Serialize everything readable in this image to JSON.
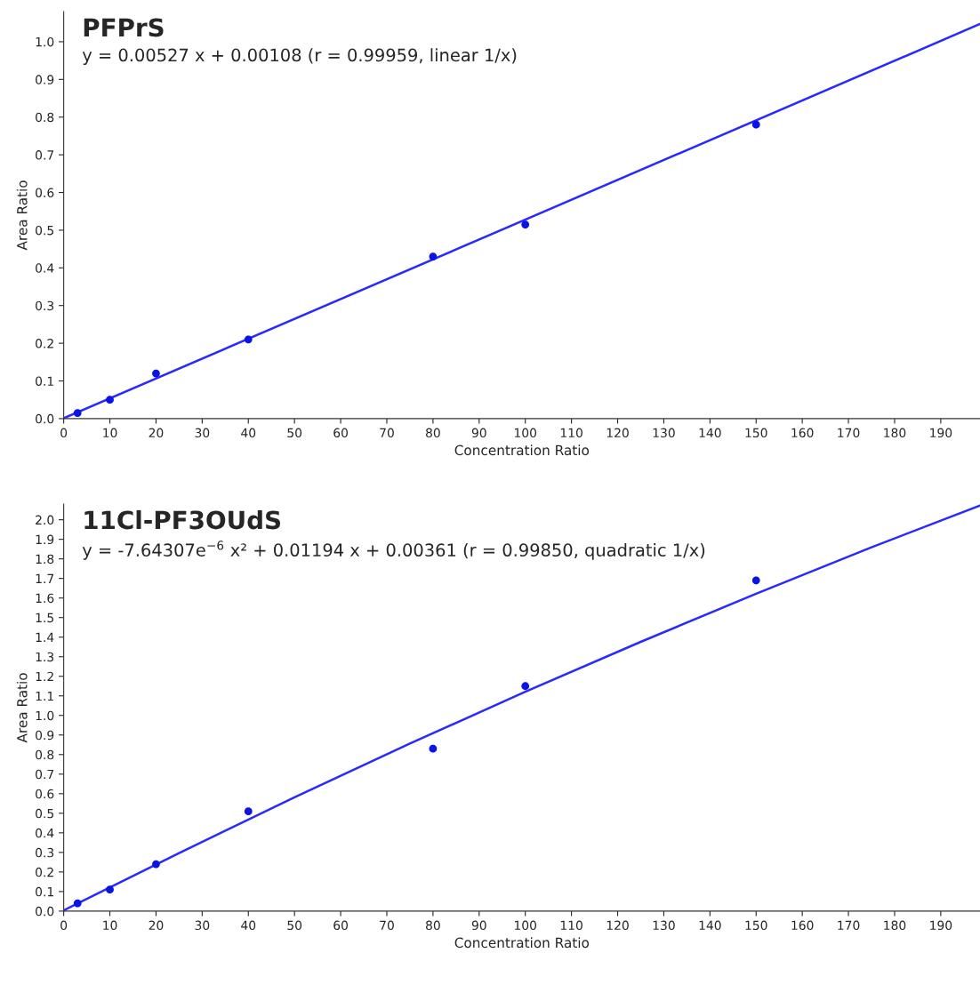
{
  "chart_data": [
    {
      "type": "scatter",
      "title": "PFPrS",
      "subtitle": "y = 0.00527 x + 0.00108 (r = 0.99959, linear 1/x)",
      "xlabel": "Concentration Ratio",
      "ylabel": "Area Ratio",
      "xlim": [
        0,
        198.5
      ],
      "ylim": [
        0,
        1.08
      ],
      "xticks": [
        0,
        10,
        20,
        30,
        40,
        50,
        60,
        70,
        80,
        90,
        100,
        110,
        120,
        130,
        140,
        150,
        160,
        170,
        180,
        190
      ],
      "yticks": [
        {
          "value": 0,
          "label": "0.0"
        },
        0.1,
        0.2,
        0.3,
        0.4,
        0.5,
        0.6,
        0.7,
        0.8,
        0.9,
        {
          "value": 1,
          "label": "1.0"
        }
      ],
      "grid": false,
      "series": [
        {
          "marker": "circle",
          "color": "#0a14e6",
          "x": [
            3,
            10,
            20,
            40,
            80,
            100,
            150
          ],
          "values": [
            0.015,
            0.05,
            0.12,
            0.21,
            0.43,
            0.515,
            0.78
          ]
        },
        {
          "type": "line",
          "marker": "none",
          "line_style": "solid",
          "color": "#2a2aff",
          "x": [
            0,
            198.5
          ],
          "values": [
            0.001,
            1.047
          ]
        }
      ]
    },
    {
      "type": "scatter",
      "title": "11Cl-PF3OUdS",
      "subtitle": "y = -7.64307e$^{−6}$ x² + 0.01194 x + 0.00361 (r = 0.99850, quadratic 1/x)",
      "xlabel": "Concentration Ratio",
      "ylabel": "Area Ratio",
      "xlim": [
        0,
        198.5
      ],
      "ylim": [
        0,
        2.08
      ],
      "xticks": [
        0,
        10,
        20,
        30,
        40,
        50,
        60,
        70,
        80,
        90,
        100,
        110,
        120,
        130,
        140,
        150,
        160,
        170,
        180,
        190
      ],
      "yticks": [
        {
          "value": 0,
          "label": "0.0"
        },
        0.1,
        0.2,
        0.3,
        0.4,
        0.5,
        0.6,
        0.7,
        0.8,
        0.9,
        {
          "value": 1,
          "label": "1.0"
        },
        1.1,
        1.2,
        1.3,
        1.4,
        1.5,
        1.6,
        1.7,
        1.8,
        1.9,
        {
          "value": 2,
          "label": "2.0"
        }
      ],
      "grid": false,
      "series": [
        {
          "marker": "circle",
          "color": "#0a14e6",
          "x": [
            3,
            10,
            20,
            40,
            80,
            100,
            150
          ],
          "values": [
            0.04,
            0.11,
            0.24,
            0.51,
            0.83,
            1.15,
            1.69
          ]
        },
        {
          "type": "line",
          "marker": "none",
          "line_style": "solid",
          "color": "#2a2aff",
          "x": [
            0,
            25,
            50,
            75,
            100,
            125,
            150,
            175,
            198.5
          ],
          "values": [
            0.004,
            0.297,
            0.582,
            0.856,
            1.121,
            1.376,
            1.622,
            1.859,
            2.073
          ]
        }
      ]
    }
  ]
}
